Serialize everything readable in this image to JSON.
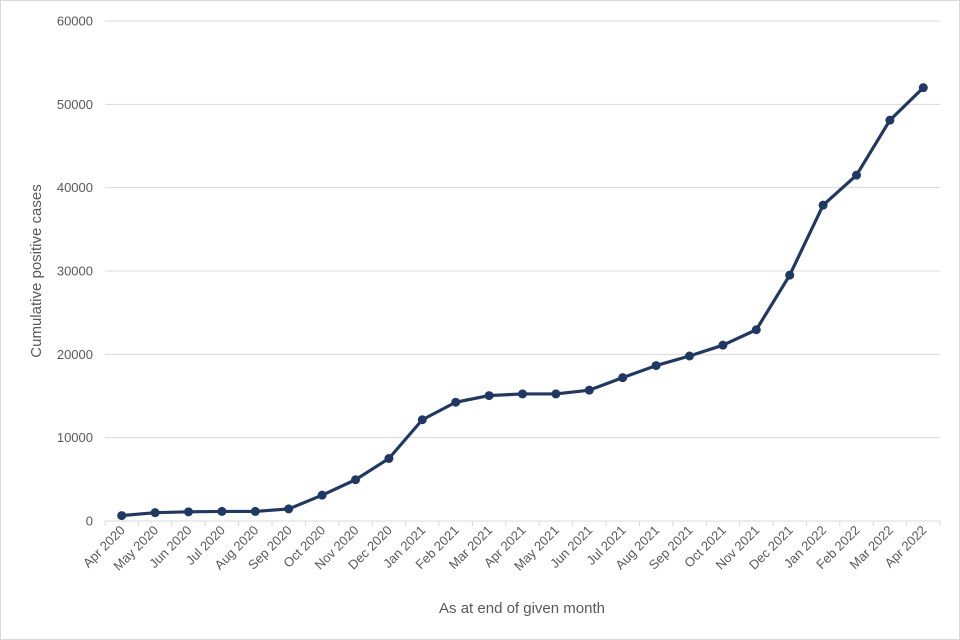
{
  "chart_data": {
    "type": "line",
    "title": "",
    "xlabel": "As at end of given month",
    "ylabel": "Cumulative positive cases",
    "ylim": [
      0,
      60000
    ],
    "yticks": [
      0,
      10000,
      20000,
      30000,
      40000,
      50000,
      60000
    ],
    "grid": true,
    "legend": "none",
    "categories": [
      "Apr 2020",
      "May 2020",
      "Jun 2020",
      "Jul 2020",
      "Aug 2020",
      "Sep 2020",
      "Oct 2020",
      "Nov 2020",
      "Dec 2020",
      "Jan 2021",
      "Feb 2021",
      "Mar 2021",
      "Apr 2021",
      "May 2021",
      "Jun 2021",
      "Jul 2021",
      "Aug 2021",
      "Sep 2021",
      "Oct 2021",
      "Nov 2021",
      "Dec 2021",
      "Jan 2022",
      "Feb 2022",
      "Mar 2022",
      "Apr 2022"
    ],
    "series": [
      {
        "color": "#1f3864",
        "values": [
          650,
          1000,
          1100,
          1150,
          1150,
          1450,
          3100,
          4950,
          7500,
          12150,
          14250,
          15050,
          15250,
          15250,
          15700,
          17200,
          18650,
          19800,
          21100,
          22950,
          29500,
          37900,
          41500,
          48100,
          52000
        ]
      }
    ]
  }
}
